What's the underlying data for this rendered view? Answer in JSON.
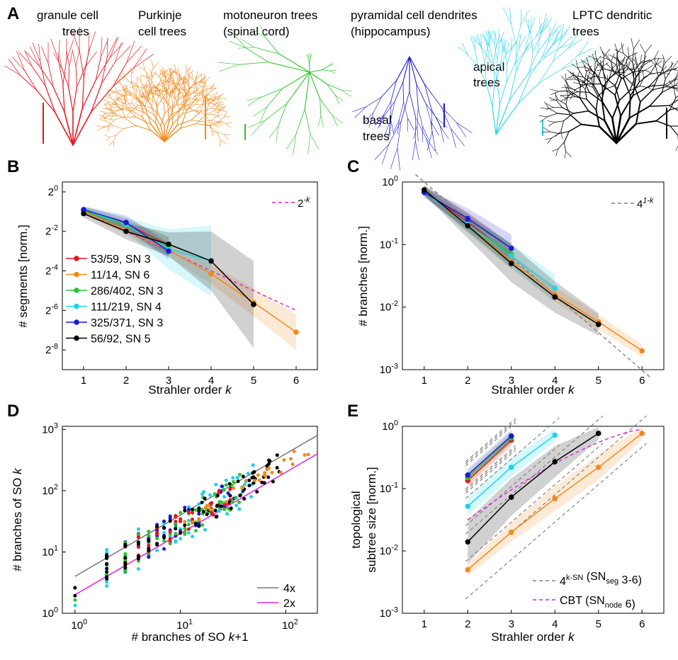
{
  "colors": {
    "granule": "#e8141e",
    "purkinje": "#f08a1e",
    "moto": "#2ec42e",
    "apical": "#1ed2e8",
    "basal": "#1a1ad2",
    "lptc": "#000000",
    "dashed_magenta": "#e01ee0",
    "dashed_gray": "#808080",
    "line_gray": "#777777",
    "line_magenta": "#e41ee4"
  },
  "panels": {
    "A": {
      "label": "A",
      "neurons": [
        {
          "id": "granule",
          "lines": [
            "granule cell",
            "trees"
          ]
        },
        {
          "id": "purkinje",
          "lines": [
            "Purkinje",
            "cell trees"
          ]
        },
        {
          "id": "moto",
          "lines": [
            "motoneuron trees",
            "(spinal cord)"
          ]
        },
        {
          "id": "pyramidal",
          "lines": [
            "pyramidal cell dendrites",
            "(hippocampus)"
          ]
        },
        {
          "id": "apical",
          "lines": [
            "apical",
            "trees"
          ]
        },
        {
          "id": "basal",
          "lines": [
            "basal",
            "trees"
          ]
        },
        {
          "id": "lptc",
          "lines": [
            "LPTC dendritic",
            "trees"
          ]
        }
      ]
    },
    "B": {
      "label": "B"
    },
    "C": {
      "label": "C"
    },
    "D": {
      "label": "D"
    },
    "E": {
      "label": "E"
    }
  },
  "chart_data": [
    {
      "panel": "B",
      "type": "line",
      "xlabel": "Strahler order",
      "xlabel_var": "k",
      "ylabel": "# segments [norm.]",
      "yscale": "log2",
      "xlim": [
        0.5,
        6.5
      ],
      "ylim_log2": [
        -9,
        0.5
      ],
      "yticks": [
        {
          "b": "2",
          "e": "0",
          "v": 0
        },
        {
          "b": "2",
          "e": "-2",
          "v": -2
        },
        {
          "b": "2",
          "e": "-4",
          "v": -4
        },
        {
          "b": "2",
          "e": "-6",
          "v": -6
        },
        {
          "b": "2",
          "e": "-8",
          "v": -8
        }
      ],
      "xticks": [
        "1",
        "2",
        "3",
        "4",
        "5",
        "6"
      ],
      "reference": {
        "label_base": "2",
        "label_exp": "-k",
        "x": [
          1,
          6
        ],
        "y_log2": [
          -1,
          -6
        ]
      },
      "legend_position": "left",
      "series": [
        {
          "id": "granule",
          "label": "53/59, SN 3",
          "x": [
            1,
            2,
            3
          ],
          "y_log2": [
            -0.95,
            -1.6,
            -2.7
          ],
          "band": [
            0.2,
            0.25,
            0.4
          ]
        },
        {
          "id": "purkinje",
          "label": "11/14, SN 6",
          "x": [
            1,
            2,
            3,
            4,
            5,
            6
          ],
          "y_log2": [
            -1.0,
            -1.95,
            -2.95,
            -4.15,
            -5.6,
            -7.1
          ],
          "band": [
            0.15,
            0.2,
            0.35,
            0.5,
            0.7,
            0.9
          ]
        },
        {
          "id": "moto",
          "label": "286/402, SN 3",
          "x": [
            1,
            2,
            3
          ],
          "y_log2": [
            -0.95,
            -1.7,
            -2.75
          ],
          "band": [
            0.15,
            0.25,
            0.5
          ]
        },
        {
          "id": "apical",
          "label": "111/219, SN 4",
          "x": [
            1,
            2,
            3,
            4
          ],
          "y_log2": [
            -0.9,
            -1.65,
            -2.9,
            -3.5
          ],
          "band": [
            0.2,
            0.35,
            1.0,
            1.8
          ]
        },
        {
          "id": "basal",
          "label": "325/371, SN 3",
          "x": [
            1,
            2,
            3
          ],
          "y_log2": [
            -0.9,
            -1.55,
            -3.0
          ],
          "band": [
            0.15,
            0.35,
            0.4
          ]
        },
        {
          "id": "lptc",
          "label": "56/92, SN 5",
          "x": [
            1,
            2,
            3,
            4,
            5
          ],
          "y_log2": [
            -1.1,
            -2.0,
            -2.65,
            -3.5,
            -5.7
          ],
          "band": [
            0.2,
            0.4,
            0.6,
            1.5,
            2.2
          ]
        }
      ]
    },
    {
      "panel": "C",
      "type": "line",
      "xlabel": "Strahler order",
      "xlabel_var": "k",
      "ylabel": "# branches [norm.]",
      "yscale": "log10",
      "xlim": [
        0.5,
        6.5
      ],
      "ylim_log10": [
        -3,
        0
      ],
      "yticks": [
        {
          "b": "10",
          "e": "0",
          "v": 0
        },
        {
          "b": "10",
          "e": "-1",
          "v": -1
        },
        {
          "b": "10",
          "e": "-2",
          "v": -2
        },
        {
          "b": "10",
          "e": "-3",
          "v": -3
        }
      ],
      "xticks": [
        "1",
        "2",
        "3",
        "4",
        "5",
        "6"
      ],
      "reference": {
        "label_base": "4",
        "label_exp": "1-k",
        "x": [
          0.8,
          6.2
        ],
        "y_log10": [
          0.12,
          -3.13
        ]
      },
      "series": [
        {
          "id": "granule",
          "x": [
            1,
            2,
            3
          ],
          "y": [
            0.72,
            0.23,
            0.065
          ],
          "band": [
            0.08,
            0.15,
            0.2
          ]
        },
        {
          "id": "purkinje",
          "x": [
            1,
            2,
            3,
            4,
            5,
            6
          ],
          "y": [
            0.72,
            0.2,
            0.055,
            0.016,
            0.0058,
            0.002
          ],
          "band": [
            0.06,
            0.08,
            0.1,
            0.12,
            0.12,
            0.1
          ]
        },
        {
          "id": "moto",
          "x": [
            1,
            2,
            3
          ],
          "y": [
            0.7,
            0.21,
            0.07
          ],
          "band": [
            0.07,
            0.12,
            0.18
          ]
        },
        {
          "id": "apical",
          "x": [
            1,
            2,
            3,
            4
          ],
          "y": [
            0.7,
            0.21,
            0.065,
            0.02
          ],
          "band": [
            0.07,
            0.14,
            0.2,
            0.22
          ]
        },
        {
          "id": "basal",
          "x": [
            1,
            2,
            3
          ],
          "y": [
            0.68,
            0.26,
            0.087
          ],
          "band": [
            0.08,
            0.16,
            0.22
          ]
        },
        {
          "id": "lptc",
          "x": [
            1,
            2,
            3,
            4,
            5
          ],
          "y": [
            0.75,
            0.2,
            0.05,
            0.0145,
            0.0053
          ],
          "band": [
            0.08,
            0.2,
            0.3,
            0.25,
            0.18
          ]
        }
      ]
    },
    {
      "panel": "D",
      "type": "scatter",
      "xlabel": "# branches of SO",
      "xlabel_var": "k",
      "xlabel_suffix": "+1",
      "ylabel": "# branches of SO",
      "ylabel_var": "k",
      "xscale": "log10",
      "yscale": "log10",
      "xlim_log10": [
        -0.12,
        2.3
      ],
      "ylim_log10": [
        0,
        3.05
      ],
      "xticks": [
        {
          "b": "10",
          "e": "0",
          "v": 0
        },
        {
          "b": "10",
          "e": "1",
          "v": 1
        },
        {
          "b": "10",
          "e": "2",
          "v": 2
        }
      ],
      "yticks": [
        {
          "b": "10",
          "e": "0",
          "v": 0
        },
        {
          "b": "10",
          "e": "1",
          "v": 1
        },
        {
          "b": "10",
          "e": "2",
          "v": 2
        },
        {
          "b": "10",
          "e": "3",
          "v": 3
        }
      ],
      "lines": [
        {
          "id": "line_gray",
          "label": "4x",
          "factor": 4
        },
        {
          "id": "line_magenta",
          "label": "2x",
          "factor": 2
        }
      ],
      "series": [
        {
          "id": "apical",
          "x_range": [
            1,
            50
          ],
          "spread": 0.35,
          "n": 70
        },
        {
          "id": "basal",
          "x_range": [
            2,
            40
          ],
          "spread": 0.25,
          "n": 60
        },
        {
          "id": "moto",
          "x_range": [
            1,
            40
          ],
          "spread": 0.25,
          "n": 80
        },
        {
          "id": "granule",
          "x_range": [
            3,
            30
          ],
          "spread": 0.2,
          "n": 40
        },
        {
          "id": "lptc",
          "x_range": [
            1,
            90
          ],
          "spread": 0.22,
          "n": 90
        },
        {
          "id": "purkinje",
          "x_range": [
            10,
            170
          ],
          "spread": 0.12,
          "n": 30
        }
      ]
    },
    {
      "panel": "E",
      "type": "line",
      "xlabel": "Strahler order",
      "xlabel_var": "k",
      "ylabel": [
        "topological",
        "subtree size [norm.]"
      ],
      "yscale": "log10",
      "xlim": [
        0.5,
        6.5
      ],
      "ylim_log10": [
        -3,
        0
      ],
      "yticks": [
        {
          "b": "10",
          "e": "0",
          "v": 0
        },
        {
          "b": "10",
          "e": "-1",
          "v": -1
        },
        {
          "b": "10",
          "e": "-2",
          "v": -2
        },
        {
          "b": "10",
          "e": "-3",
          "v": -3
        }
      ],
      "xticks": [
        "1",
        "2",
        "3",
        "4",
        "5",
        "6"
      ],
      "legend": [
        {
          "id": "dashed_gray",
          "base": "4",
          "exp": "k-SN",
          "mid": " (SN",
          "sub": "seg",
          "tail": " 3-6)"
        },
        {
          "id": "dashed_magenta",
          "base": "CBT (SN",
          "exp": "",
          "mid": "",
          "sub": "node",
          "tail": " 6)"
        }
      ],
      "series": [
        {
          "id": "granule",
          "x": [
            2,
            3
          ],
          "y": [
            0.135,
            0.6
          ],
          "band": [
            0.1,
            0.1
          ]
        },
        {
          "id": "moto",
          "x": [
            2,
            3
          ],
          "y": [
            0.15,
            0.65
          ],
          "band": [
            0.1,
            0.1
          ]
        },
        {
          "id": "basal",
          "x": [
            2,
            3
          ],
          "y": [
            0.165,
            0.7
          ],
          "band": [
            0.1,
            0.1
          ]
        },
        {
          "id": "apical",
          "x": [
            2,
            3,
            4
          ],
          "y": [
            0.052,
            0.22,
            0.72
          ],
          "band": [
            0.15,
            0.15,
            0.1
          ]
        },
        {
          "id": "lptc",
          "x": [
            2,
            3,
            4,
            5
          ],
          "y": [
            0.014,
            0.073,
            0.27,
            0.77
          ],
          "band": [
            0.35,
            0.3,
            0.25,
            0.1
          ]
        },
        {
          "id": "purkinje",
          "x": [
            2,
            3,
            4,
            5,
            6
          ],
          "y": [
            0.005,
            0.02,
            0.069,
            0.22,
            0.77
          ],
          "band": [
            0.1,
            0.15,
            0.2,
            0.2,
            0.1
          ]
        }
      ]
    }
  ]
}
